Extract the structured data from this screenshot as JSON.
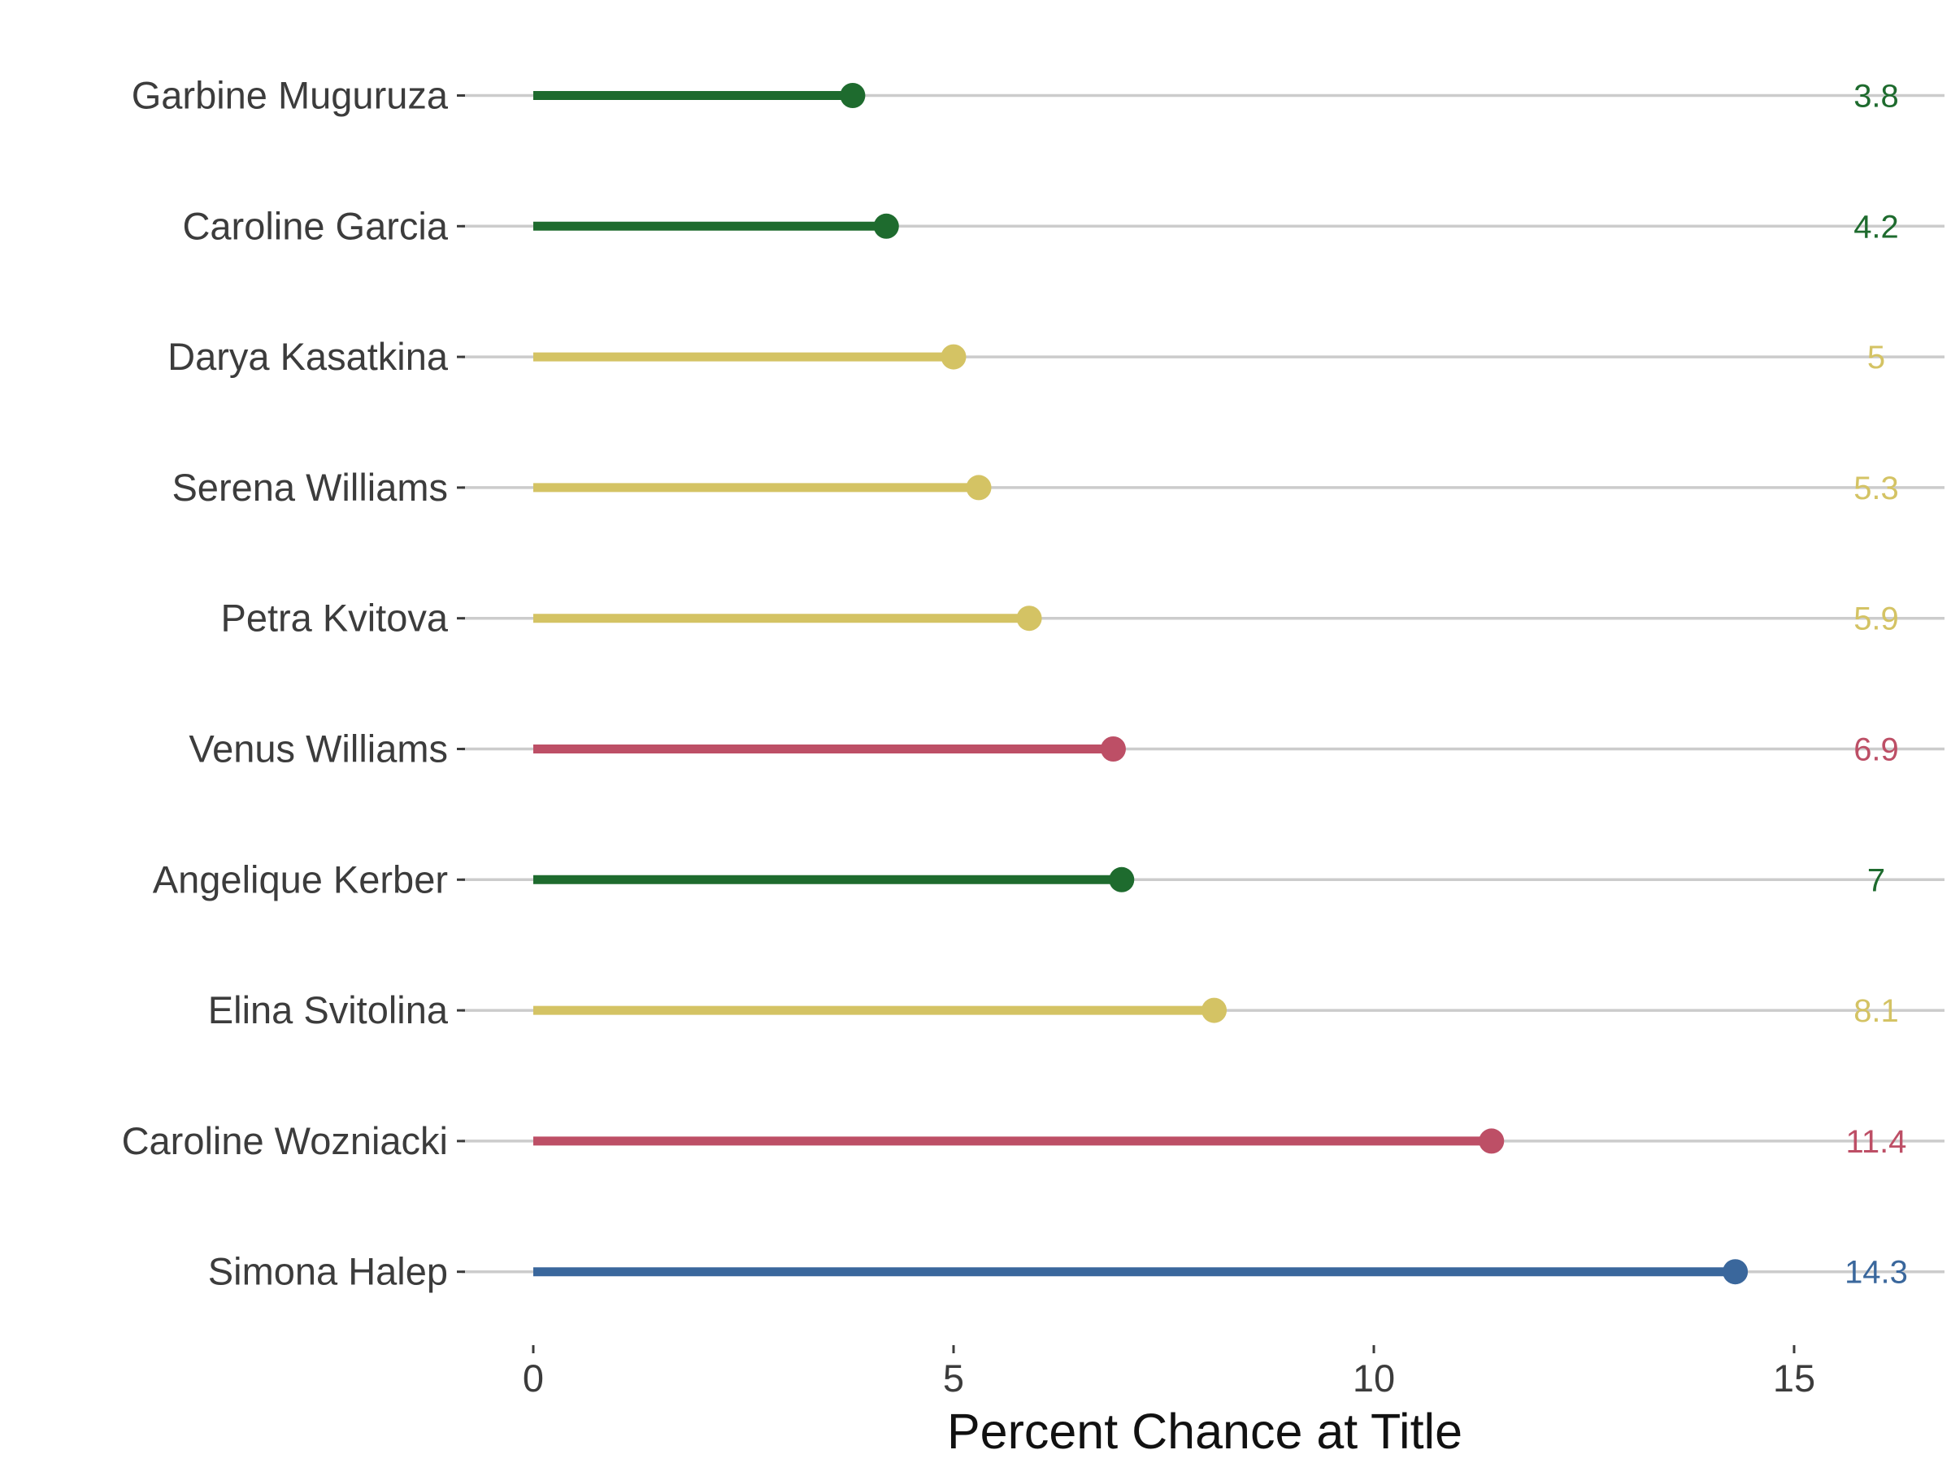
{
  "chart_data": {
    "type": "lollipop",
    "categories": [
      "Garbine Muguruza",
      "Caroline Garcia",
      "Darya Kasatkina",
      "Serena Williams",
      "Petra Kvitova",
      "Venus Williams",
      "Angelique Kerber",
      "Elina Svitolina",
      "Caroline Wozniacki",
      "Simona Halep"
    ],
    "values": [
      3.8,
      4.2,
      5,
      5.3,
      5.9,
      6.9,
      7,
      8.1,
      11.4,
      14.3
    ],
    "value_labels": [
      "3.8",
      "4.2",
      "5",
      "5.3",
      "5.9",
      "6.9",
      "7",
      "8.1",
      "11.4",
      "14.3"
    ],
    "point_colors": [
      "#1e6b2e",
      "#1e6b2e",
      "#d4c364",
      "#d4c364",
      "#d4c364",
      "#bd4f66",
      "#1e6b2e",
      "#d4c364",
      "#bd4f66",
      "#3a679c"
    ],
    "xlabel": "Percent Chance at Title",
    "ylabel": "",
    "xlim": [
      0,
      16.5
    ],
    "xticks": [
      0,
      5,
      10,
      15
    ],
    "xtick_labels": [
      "0",
      "5",
      "10",
      "15"
    ],
    "gridline_color": "#cccccc",
    "grid": "horizontal only",
    "legend": "none"
  }
}
